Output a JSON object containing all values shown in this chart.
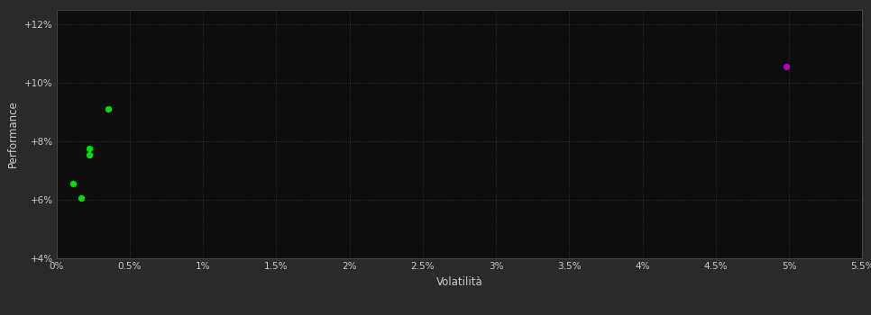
{
  "outer_bg_color": "#2a2a2a",
  "plot_bg_color": "#0d0d0d",
  "grid_color": "#3a3a3a",
  "xlabel": "Volatilità",
  "ylabel": "Performance",
  "xlim": [
    0.0,
    0.055
  ],
  "ylim": [
    0.04,
    0.125
  ],
  "xticks": [
    0.0,
    0.005,
    0.01,
    0.015,
    0.02,
    0.025,
    0.03,
    0.035,
    0.04,
    0.045,
    0.05,
    0.055
  ],
  "yticks": [
    0.04,
    0.06,
    0.08,
    0.1,
    0.12
  ],
  "green_points": [
    [
      0.0035,
      0.091
    ],
    [
      0.00225,
      0.0775
    ],
    [
      0.00225,
      0.0755
    ],
    [
      0.00115,
      0.0655
    ],
    [
      0.00165,
      0.0605
    ]
  ],
  "magenta_points": [
    [
      0.0498,
      0.1055
    ]
  ],
  "point_size": 28,
  "tick_color": "#cccccc",
  "tick_fontsize": 7.5,
  "label_fontsize": 8.5,
  "green_color": "#00dd00",
  "magenta_color": "#bb00bb"
}
